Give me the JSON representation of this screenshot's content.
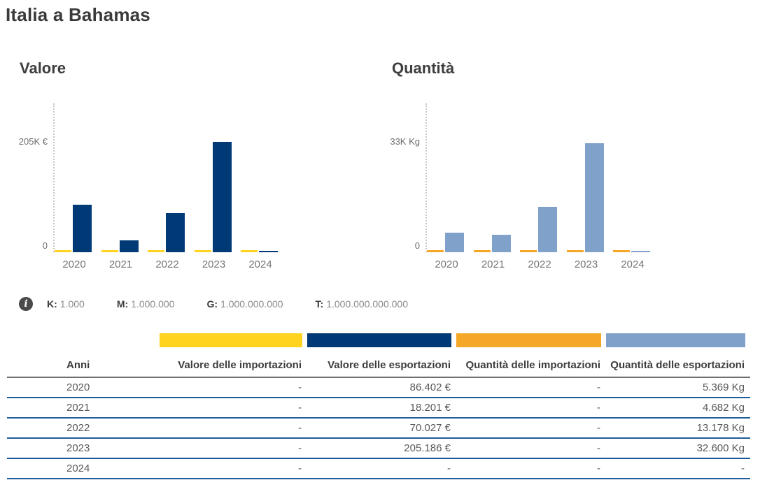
{
  "page": {
    "title": "Italia a Bahamas"
  },
  "chart_data": [
    {
      "type": "bar",
      "key": "valore",
      "title": "Valore",
      "unit": "€",
      "grid": false,
      "legend_position": "none",
      "y_axis": {
        "max_label": "205K €",
        "zero_label": "0",
        "max_value": 205186,
        "min": 0
      },
      "categories": [
        "2020",
        "2021",
        "2022",
        "2023",
        "2024"
      ],
      "series": [
        {
          "name": "Valore delle importazioni",
          "color": "#FFD320",
          "values": [
            null,
            null,
            null,
            null,
            null
          ]
        },
        {
          "name": "Valore delle esportazioni",
          "color": "#003A76",
          "values": [
            86402,
            18201,
            70027,
            205186,
            null
          ]
        }
      ]
    },
    {
      "type": "bar",
      "key": "quantita",
      "title": "Quantità",
      "unit": "Kg",
      "grid": false,
      "legend_position": "none",
      "y_axis": {
        "max_label": "33K Kg",
        "zero_label": "0",
        "max_value": 33000,
        "min": 0
      },
      "categories": [
        "2020",
        "2021",
        "2022",
        "2023",
        "2024"
      ],
      "series": [
        {
          "name": "Quantità delle importazioni",
          "color": "#F5A728",
          "values": [
            null,
            null,
            null,
            null,
            null
          ]
        },
        {
          "name": "Quantità delle esportazioni",
          "color": "#80A1CA",
          "values": [
            5369,
            4682,
            13178,
            32600,
            null
          ]
        }
      ]
    }
  ],
  "info_legend": {
    "icon": "info-icon",
    "items": [
      {
        "label": "K:",
        "value": "1.000"
      },
      {
        "label": "M:",
        "value": "1.000.000"
      },
      {
        "label": "G:",
        "value": "1.000.000.000"
      },
      {
        "label": "T:",
        "value": "1.000.000.000.000"
      }
    ]
  },
  "table": {
    "swatch_colors": [
      "#FFD320",
      "#003A76",
      "#F5A728",
      "#80A1CA"
    ],
    "columns": [
      "Anni",
      "Valore delle importazioni",
      "Valore delle esportazioni",
      "Quantità delle importazioni",
      "Quantità delle esportazioni"
    ],
    "rows": [
      [
        "2020",
        "-",
        "86.402 €",
        "-",
        "5.369 Kg"
      ],
      [
        "2021",
        "-",
        "18.201 €",
        "-",
        "4.682 Kg"
      ],
      [
        "2022",
        "-",
        "70.027 €",
        "-",
        "13.178 Kg"
      ],
      [
        "2023",
        "-",
        "205.186 €",
        "-",
        "32.600 Kg"
      ],
      [
        "2024",
        "-",
        "-",
        "-",
        "-"
      ]
    ]
  },
  "colors": {
    "import_value": "#FFD320",
    "export_value": "#003A76",
    "import_quantity": "#F5A728",
    "export_quantity": "#80A1CA",
    "row_border": "#1F5C99",
    "header_border": "#6E6E6E"
  }
}
